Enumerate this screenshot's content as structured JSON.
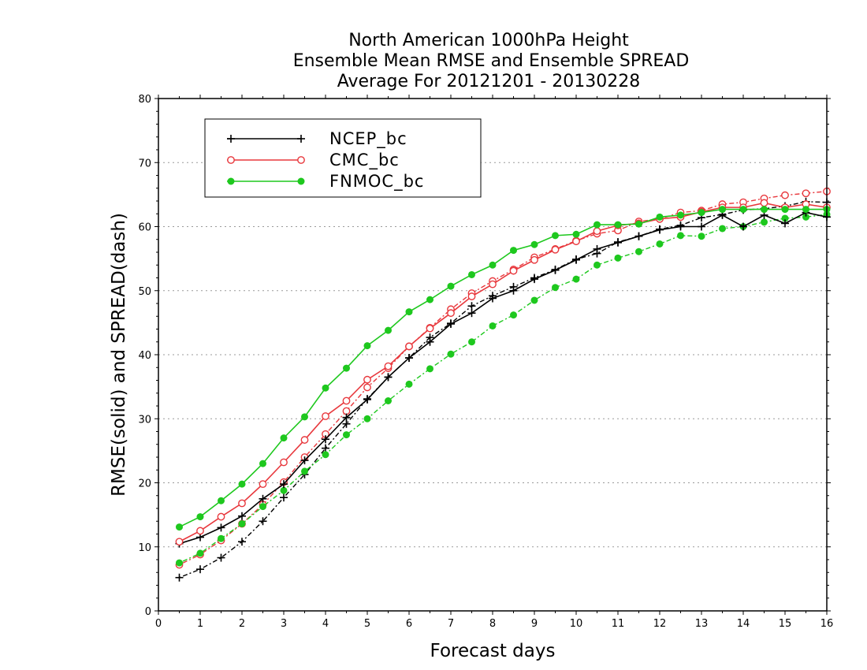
{
  "chart_data": {
    "type": "line",
    "title_lines": [
      "North American 1000hPa Height",
      "Ensemble Mean RMSE and Ensemble SPREAD",
      "Average For 20121201 - 20130228"
    ],
    "xlabel": "Forecast days",
    "ylabel": "RMSE(solid) and SPREAD(dash)",
    "xlim": [
      0,
      16
    ],
    "ylim": [
      0,
      80
    ],
    "x_ticks": [
      0,
      1,
      2,
      3,
      4,
      5,
      6,
      7,
      8,
      9,
      10,
      11,
      12,
      13,
      14,
      15,
      16
    ],
    "y_ticks": [
      0,
      10,
      20,
      30,
      40,
      50,
      60,
      70,
      80
    ],
    "grid": "horizontal-dotted",
    "legend_position": "top-left",
    "x": [
      0.5,
      1,
      1.5,
      2,
      2.5,
      3,
      3.5,
      4,
      4.5,
      5,
      5.5,
      6,
      6.5,
      7,
      7.5,
      8,
      8.5,
      9,
      9.5,
      10,
      10.5,
      11,
      11.5,
      12,
      12.5,
      13,
      13.5,
      14,
      14.5,
      15,
      15.5,
      16
    ],
    "series": [
      {
        "name": "NCEP_bc",
        "color": "#000000",
        "marker": "plus",
        "rmse": [
          10.5,
          11.5,
          13.0,
          14.8,
          17.5,
          19.8,
          23.5,
          26.8,
          30.2,
          33.0,
          36.5,
          39.5,
          42.0,
          44.8,
          46.5,
          48.8,
          50.0,
          51.8,
          53.2,
          54.8,
          56.5,
          57.5,
          58.5,
          59.5,
          60.0,
          60.0,
          61.8,
          60.0,
          61.8,
          60.5,
          62.2,
          61.5
        ],
        "spread": [
          5.2,
          6.5,
          8.3,
          10.8,
          14.0,
          17.7,
          21.3,
          25.4,
          29.2,
          33.1,
          36.5,
          39.5,
          42.7,
          44.9,
          47.6,
          49.2,
          50.6,
          52.0,
          53.3,
          54.9,
          55.8,
          57.6,
          58.5,
          59.6,
          60.2,
          61.4,
          61.9,
          62.6,
          62.8,
          63.2,
          63.9,
          63.8
        ]
      },
      {
        "name": "CMC_bc",
        "color": "#e8383d",
        "marker": "open-circle",
        "rmse": [
          10.8,
          12.5,
          14.7,
          16.8,
          19.8,
          23.2,
          26.7,
          30.4,
          32.8,
          36.1,
          38.2,
          41.3,
          44.1,
          46.5,
          49.1,
          51.0,
          53.1,
          54.8,
          56.4,
          57.7,
          59.3,
          60.2,
          60.5,
          61.2,
          61.5,
          62.3,
          63.0,
          63.0,
          63.7,
          63.0,
          63.5,
          63.0
        ],
        "spread": [
          7.2,
          8.8,
          11.0,
          13.6,
          16.6,
          20.1,
          24.0,
          27.6,
          31.2,
          34.9,
          37.9,
          41.3,
          44.2,
          47.1,
          49.6,
          51.5,
          53.3,
          55.2,
          56.5,
          57.8,
          58.9,
          59.4,
          60.8,
          61.2,
          62.2,
          62.5,
          63.5,
          63.8,
          64.4,
          64.9,
          65.2,
          65.5
        ]
      },
      {
        "name": "FNMOC_bc",
        "color": "#1ec81e",
        "marker": "filled-circle",
        "rmse": [
          13.1,
          14.7,
          17.2,
          19.8,
          23.0,
          27.0,
          30.3,
          34.8,
          37.9,
          41.4,
          43.8,
          46.7,
          48.6,
          50.7,
          52.5,
          54.0,
          56.3,
          57.2,
          58.6,
          58.8,
          60.3,
          60.3,
          60.4,
          61.5,
          61.8,
          62.2,
          62.7,
          62.7,
          62.7,
          62.7,
          62.7,
          62.7
        ],
        "spread": [
          7.5,
          9.0,
          11.3,
          13.6,
          16.3,
          18.8,
          21.8,
          24.4,
          27.5,
          30.0,
          32.8,
          35.4,
          37.8,
          40.1,
          42.0,
          44.5,
          46.2,
          48.5,
          50.5,
          51.8,
          54.0,
          55.1,
          56.1,
          57.3,
          58.6,
          58.5,
          59.7,
          60.0,
          60.7,
          61.3,
          61.5,
          61.9
        ]
      }
    ]
  }
}
